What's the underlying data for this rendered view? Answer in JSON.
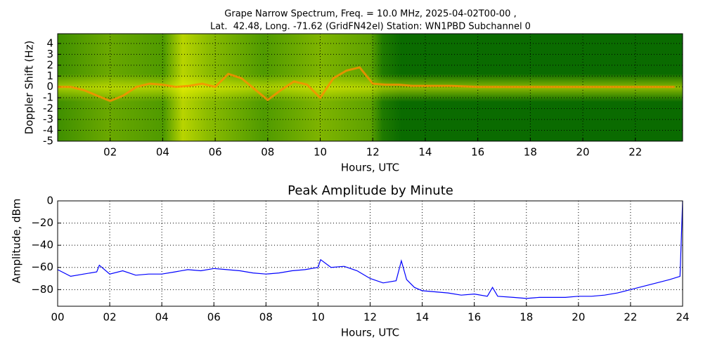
{
  "chart_data": [
    {
      "type": "spectrogram",
      "title": "Grape Narrow Spectrum, Freq. = 10.0 MHz, 2025-04-02T00-00 ,",
      "subtitle": "Lat.  42.48, Long. -71.62 (GridFN42el) Station: WN1PBD Subchannel 0",
      "x_label": "Hours, UTC",
      "y_label": "Doppler Shift (Hz)",
      "x": [
        0,
        0.5,
        1,
        1.5,
        2,
        2.5,
        3,
        3.5,
        4,
        4.5,
        5,
        5.5,
        6,
        6.5,
        7,
        7.5,
        8,
        8.5,
        9,
        9.5,
        10,
        10.5,
        11,
        11.5,
        12,
        12.5,
        13,
        13.5,
        14,
        15,
        16,
        17,
        18,
        19,
        20,
        21,
        22,
        23,
        23.5
      ],
      "values": [
        0,
        0,
        -0.3,
        -0.8,
        -1.3,
        -0.8,
        0,
        0.3,
        0.2,
        0,
        0.1,
        0.3,
        0,
        1.2,
        0.8,
        -0.2,
        -1.2,
        -0.3,
        0.5,
        0.2,
        -1,
        0.8,
        1.5,
        1.8,
        0.3,
        0.2,
        0.2,
        0.1,
        0.1,
        0.1,
        0,
        0,
        0,
        0,
        0,
        0,
        0,
        0,
        0
      ],
      "color": "#ff8c00",
      "xlim": [
        0,
        23.8
      ],
      "ylim": [
        -5,
        4.9
      ],
      "xticks": [
        {
          "value": 2,
          "label": "02"
        },
        {
          "value": 4,
          "label": "04"
        },
        {
          "value": 6,
          "label": "06"
        },
        {
          "value": 8,
          "label": "08"
        },
        {
          "value": 10,
          "label": "10"
        },
        {
          "value": 12,
          "label": "12"
        },
        {
          "value": 14,
          "label": "14"
        },
        {
          "value": 16,
          "label": "16"
        },
        {
          "value": 18,
          "label": "18"
        },
        {
          "value": 20,
          "label": "20"
        },
        {
          "value": 22,
          "label": "22"
        }
      ],
      "yticks": [
        4,
        3,
        2,
        1,
        0,
        -1,
        -2,
        -3,
        -4,
        -5
      ],
      "grid": true
    },
    {
      "type": "line",
      "title": "Peak Amplitude by Minute",
      "x_label": "Hours, UTC",
      "y_label": "Amplitude, dBm",
      "x": [
        0,
        0.5,
        1,
        1.5,
        1.6,
        2,
        2.5,
        3,
        3.5,
        4,
        4.5,
        5,
        5.5,
        6,
        6.5,
        7,
        7.5,
        8,
        8.5,
        9,
        9.5,
        10,
        10.1,
        10.5,
        11,
        11.5,
        12,
        12.5,
        13,
        13.2,
        13.4,
        13.7,
        14,
        14.5,
        15,
        15.5,
        16,
        16.5,
        16.7,
        16.9,
        17.5,
        18,
        18.5,
        19,
        19.5,
        20,
        20.5,
        21,
        21.5,
        22,
        22.5,
        23,
        23.5,
        23.9,
        24
      ],
      "values": [
        -62,
        -68,
        -66,
        -64,
        -58,
        -66,
        -63,
        -67,
        -66,
        -66,
        -64,
        -62,
        -63,
        -61,
        -62,
        -63,
        -65,
        -66,
        -65,
        -63,
        -62,
        -60,
        -53,
        -60,
        -59,
        -63,
        -70,
        -74,
        -72,
        -54,
        -71,
        -78,
        -81,
        -82,
        -83,
        -85,
        -84,
        -86,
        -78,
        -86,
        -87,
        -88,
        -87,
        -87,
        -87,
        -86,
        -86,
        -85,
        -83,
        -80,
        -77,
        -74,
        -71,
        -68,
        0
      ],
      "color": "#0000ff",
      "xlim": [
        0,
        24
      ],
      "ylim": [
        -95,
        0
      ],
      "xticks": [
        {
          "value": 0,
          "label": "00"
        },
        {
          "value": 2,
          "label": "02"
        },
        {
          "value": 4,
          "label": "04"
        },
        {
          "value": 6,
          "label": "06"
        },
        {
          "value": 8,
          "label": "08"
        },
        {
          "value": 10,
          "label": "10"
        },
        {
          "value": 12,
          "label": "12"
        },
        {
          "value": 14,
          "label": "14"
        },
        {
          "value": 16,
          "label": "16"
        },
        {
          "value": 18,
          "label": "18"
        },
        {
          "value": 20,
          "label": "20"
        },
        {
          "value": 22,
          "label": "22"
        },
        {
          "value": 24,
          "label": "24"
        }
      ],
      "yticks": [
        0,
        {
          "value": -20,
          "label": "−20"
        },
        {
          "value": -40,
          "label": "−40"
        },
        {
          "value": -60,
          "label": "−60"
        },
        {
          "value": -80,
          "label": "−80"
        }
      ],
      "grid": true
    }
  ]
}
